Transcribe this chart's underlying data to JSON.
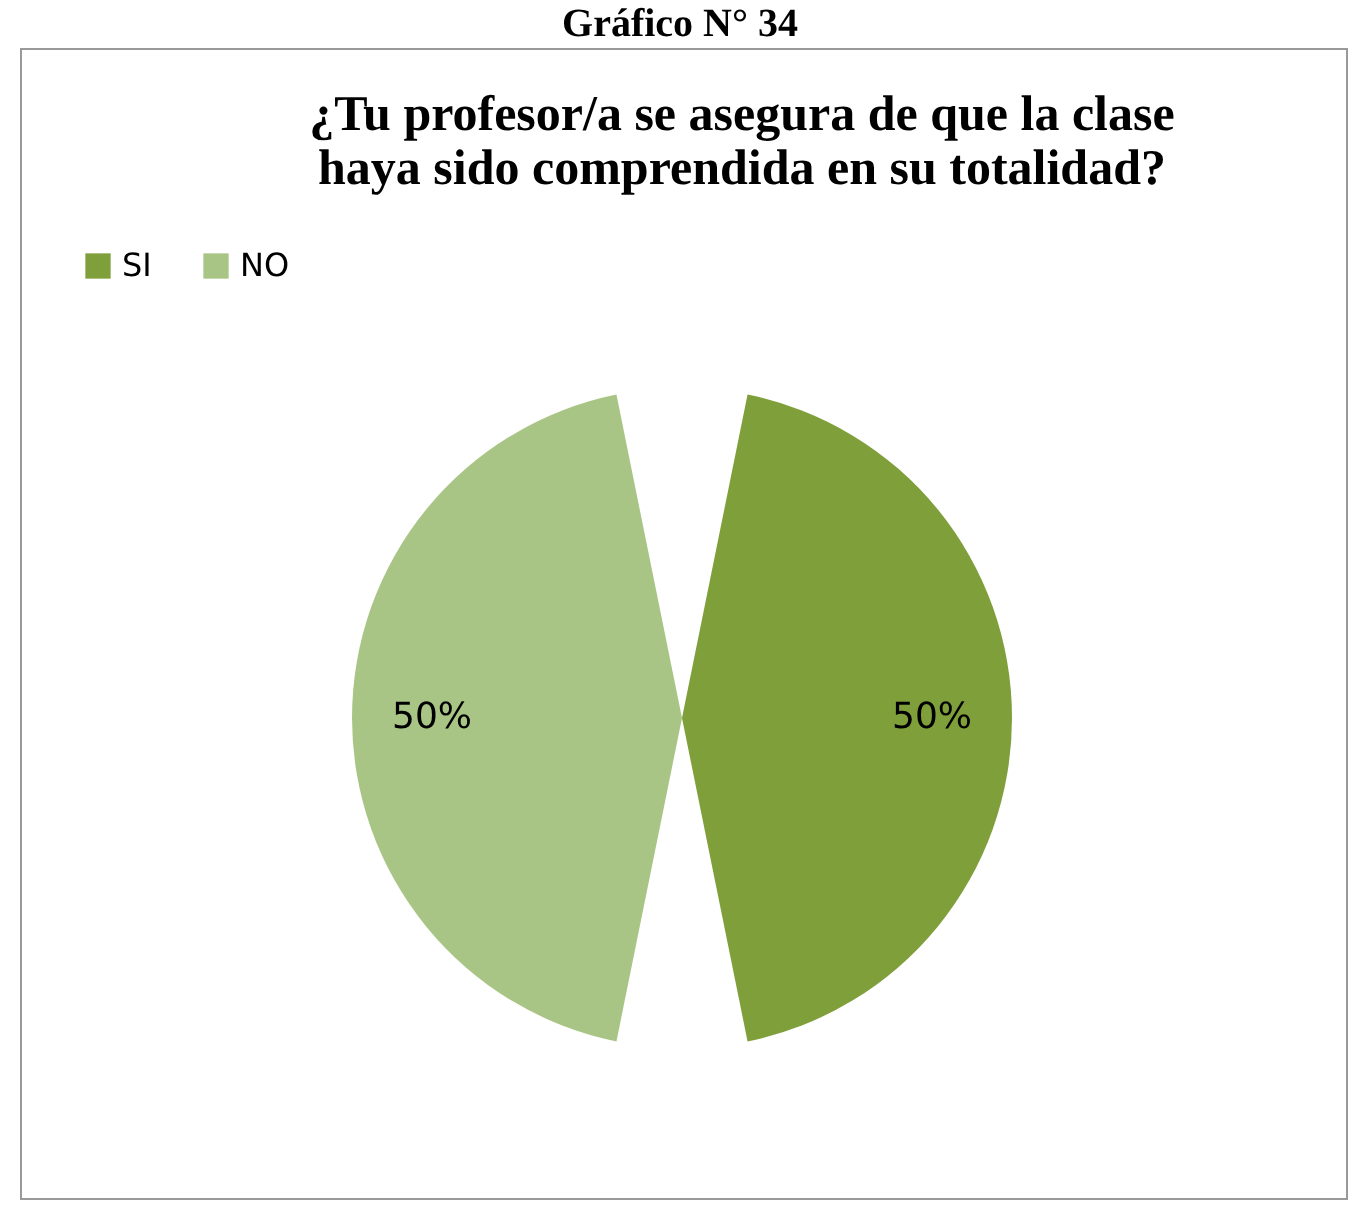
{
  "chart_data": {
    "type": "pie",
    "title": "¿Tu profesor/a se asegura de que la clase haya sido comprendida en su totalidad?",
    "annotations": [
      "Gráfico N° 34"
    ],
    "categories": [
      "SI",
      "NO"
    ],
    "values": [
      50,
      50
    ],
    "colors": [
      "#7f9f3a",
      "#a9c585"
    ],
    "value_labels": [
      "50%",
      "50%"
    ],
    "legend": "top"
  }
}
